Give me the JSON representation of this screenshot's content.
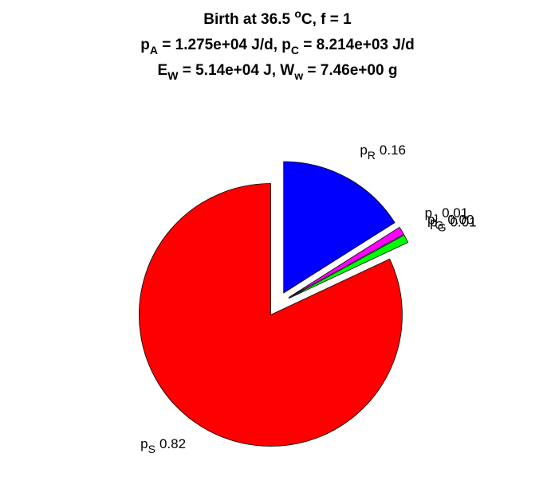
{
  "chart_data": {
    "type": "pie",
    "title": [
      [
        {
          "text": "Birth at 36.5 "
        },
        {
          "text": "o",
          "pos": "sup"
        },
        {
          "text": "C, f = 1"
        }
      ],
      [
        {
          "text": "p"
        },
        {
          "text": "A",
          "pos": "sub"
        },
        {
          "text": " = 1.275e+04 J/d, p"
        },
        {
          "text": "C",
          "pos": "sub"
        },
        {
          "text": " = 8.214e+03 J/d"
        }
      ],
      [
        {
          "text": "E"
        },
        {
          "text": "W",
          "pos": "sub"
        },
        {
          "text": " = 5.14e+04 J, W"
        },
        {
          "text": "w",
          "pos": "sub"
        },
        {
          "text": " = 7.46e+00 g"
        }
      ]
    ],
    "categories": [
      "p",
      "p",
      "p",
      "p",
      "p"
    ],
    "subscripts": [
      "R",
      "J",
      "G",
      "G",
      "S"
    ],
    "values": [
      0.16,
      0.01,
      0,
      0.01,
      0.82
    ],
    "value_labels": [
      "0.16",
      "0.01",
      "0.00",
      "0.01",
      "0.82"
    ],
    "colors": [
      "#0000ff",
      "#ff00ff",
      "#00ffff",
      "#00ff00",
      "#ff0000"
    ],
    "explode": true
  }
}
